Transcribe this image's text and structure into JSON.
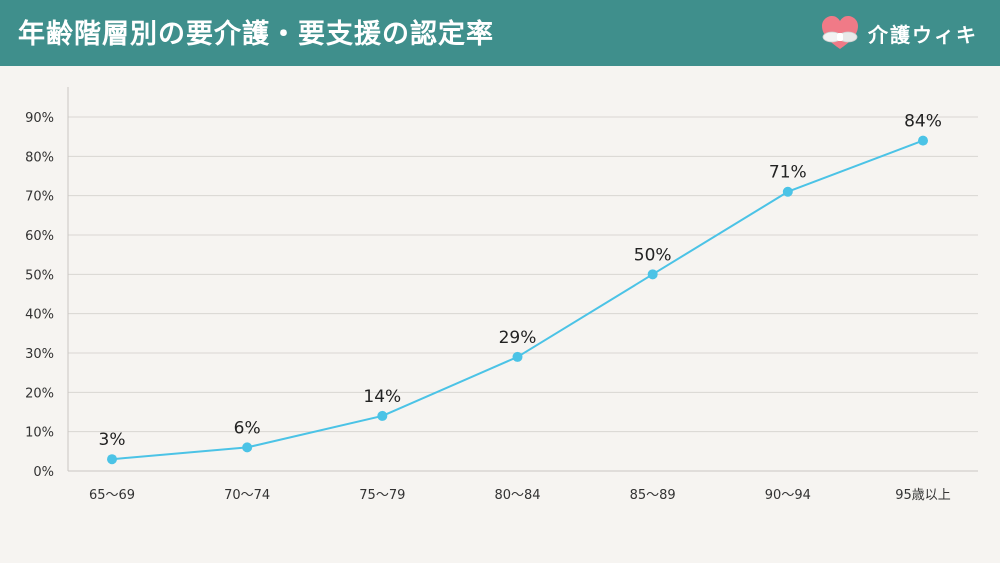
{
  "header": {
    "title": "年齢階層別の要介護・要支援の認定率",
    "brand_name": "介護ウィキ",
    "brand_logo_icon": "heart-hands-icon",
    "header_color": "#3f8f8c"
  },
  "chart_data": {
    "type": "line",
    "title": "年齢階層別の要介護・要支援の認定率",
    "xlabel": "",
    "ylabel": "",
    "categories": [
      "65〜69",
      "70〜74",
      "75〜79",
      "80〜84",
      "85〜89",
      "90〜94",
      "95歳以上"
    ],
    "values": [
      3,
      6,
      14,
      29,
      50,
      71,
      84
    ],
    "data_labels": [
      "3%",
      "6%",
      "14%",
      "29%",
      "50%",
      "71%",
      "84%"
    ],
    "ylim": [
      0,
      90
    ],
    "yticks": [
      0,
      10,
      20,
      30,
      40,
      50,
      60,
      70,
      80,
      90
    ],
    "ytick_labels": [
      "0%",
      "10%",
      "20%",
      "30%",
      "40%",
      "50%",
      "60%",
      "70%",
      "80%",
      "90%"
    ],
    "grid": true,
    "line_color": "#4bc3e6",
    "grid_color": "#d9d6d2"
  }
}
